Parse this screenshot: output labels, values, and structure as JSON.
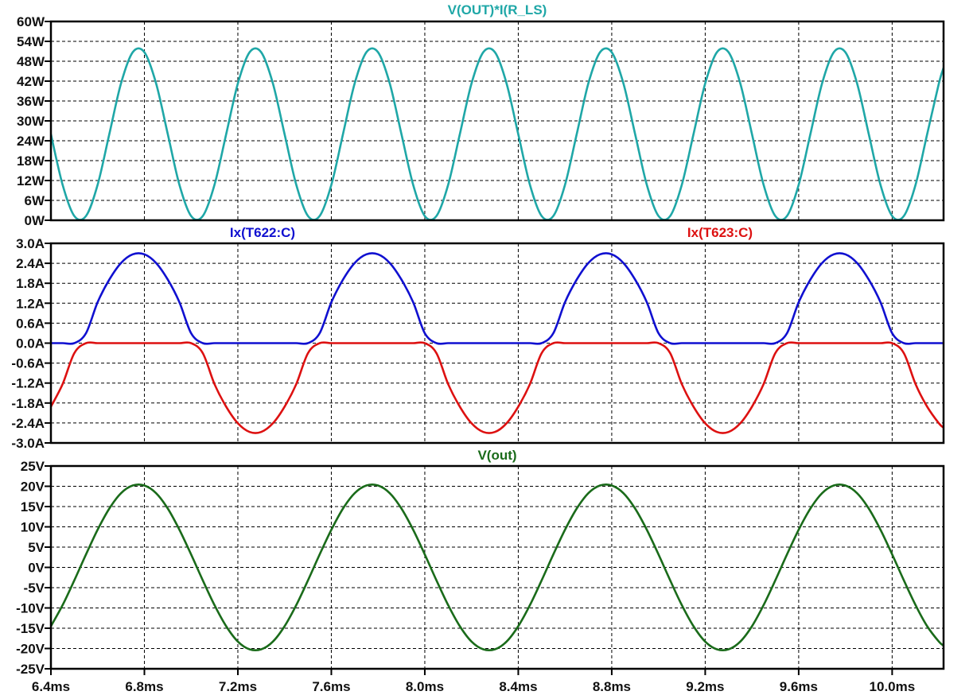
{
  "x_axis": {
    "unit": "ms",
    "range": [
      6.4,
      10.22
    ],
    "ticks": [
      "6.4ms",
      "6.8ms",
      "7.2ms",
      "7.6ms",
      "8.0ms",
      "8.4ms",
      "8.8ms",
      "9.2ms",
      "9.6ms",
      "10.0ms"
    ],
    "tick_values": [
      6.4,
      6.8,
      7.2,
      7.6,
      8.0,
      8.4,
      8.8,
      9.2,
      9.6,
      10.0
    ]
  },
  "x_ms": [
    6.4,
    6.45,
    6.5,
    6.55,
    6.6,
    6.65,
    6.7,
    6.75,
    6.8,
    6.85,
    6.9,
    6.95,
    7.0,
    7.05,
    7.1,
    7.15,
    7.2,
    7.25,
    7.3,
    7.35,
    7.4,
    7.45,
    7.5,
    7.55,
    7.6,
    7.65,
    7.7,
    7.75,
    7.8,
    7.85,
    7.9,
    7.95,
    8.0,
    8.05,
    8.1,
    8.15,
    8.2,
    8.25,
    8.3,
    8.35,
    8.4,
    8.45,
    8.5,
    8.55,
    8.6,
    8.65,
    8.7,
    8.75,
    8.8,
    8.85,
    8.9,
    8.95,
    9.0,
    9.05,
    9.1,
    9.15,
    9.2,
    9.25,
    9.3,
    9.35,
    9.4,
    9.45,
    9.5,
    9.55,
    9.6,
    9.65,
    9.7,
    9.75,
    9.8,
    9.85,
    9.9,
    9.95,
    10.0,
    10.05,
    10.1,
    10.15,
    10.2,
    10.22
  ],
  "chart_data": [
    {
      "type": "line",
      "grid": true,
      "ylim": [
        0,
        60
      ],
      "yticks": [
        "60W",
        "54W",
        "48W",
        "42W",
        "36W",
        "30W",
        "24W",
        "18W",
        "12W",
        "6W",
        "0W"
      ],
      "ytick_values": [
        60,
        54,
        48,
        42,
        36,
        30,
        24,
        18,
        12,
        6,
        0
      ],
      "series": [
        {
          "name": "V(OUT)*I(R_LS)",
          "color": "#1fa7a7",
          "values": [
            26.0,
            10.7,
            1.3,
            1.3,
            10.7,
            26.0,
            41.3,
            50.7,
            50.7,
            41.3,
            26.0,
            10.7,
            1.3,
            1.3,
            10.7,
            26.0,
            41.3,
            50.7,
            50.7,
            41.3,
            26.0,
            10.7,
            1.3,
            1.3,
            10.7,
            26.0,
            41.3,
            50.7,
            50.7,
            41.3,
            26.0,
            10.7,
            1.3,
            1.3,
            10.7,
            26.0,
            41.3,
            50.7,
            50.7,
            41.3,
            26.0,
            10.7,
            1.3,
            1.3,
            10.7,
            26.0,
            41.3,
            50.7,
            50.7,
            41.3,
            26.0,
            10.7,
            1.3,
            1.3,
            10.7,
            26.0,
            41.3,
            50.7,
            50.7,
            41.3,
            26.0,
            10.7,
            1.3,
            1.3,
            10.7,
            26.0,
            41.3,
            50.7,
            50.7,
            41.3,
            26.0,
            10.7,
            1.3,
            1.3,
            10.7,
            26.0,
            41.3,
            46.0
          ]
        }
      ]
    },
    {
      "type": "line",
      "grid": true,
      "ylim": [
        -3,
        3
      ],
      "yticks": [
        "3.0A",
        "2.4A",
        "1.8A",
        "1.2A",
        "0.6A",
        "0.0A",
        "-0.6A",
        "-1.2A",
        "-1.8A",
        "-2.4A",
        "-3.0A"
      ],
      "ytick_values": [
        3,
        2.4,
        1.8,
        1.2,
        0.6,
        0,
        -0.6,
        -1.2,
        -1.8,
        -2.4,
        -3
      ],
      "series": [
        {
          "name": "Ix(T622:C)",
          "color": "#1010d0",
          "values": [
            0,
            0,
            0,
            0.3,
            1.23,
            1.91,
            2.41,
            2.67,
            2.67,
            2.41,
            1.91,
            1.23,
            0.3,
            0,
            0,
            0,
            0,
            0,
            0,
            0,
            0,
            0,
            0,
            0.3,
            1.23,
            1.91,
            2.41,
            2.67,
            2.67,
            2.41,
            1.91,
            1.23,
            0.3,
            0,
            0,
            0,
            0,
            0,
            0,
            0,
            0,
            0,
            0,
            0.3,
            1.23,
            1.91,
            2.41,
            2.67,
            2.67,
            2.41,
            1.91,
            1.23,
            0.3,
            0,
            0,
            0,
            0,
            0,
            0,
            0,
            0,
            0,
            0,
            0.3,
            1.23,
            1.91,
            2.41,
            2.67,
            2.67,
            2.41,
            1.91,
            1.23,
            0.3,
            0,
            0,
            0,
            0,
            0
          ]
        },
        {
          "name": "Ix(T623:C)",
          "color": "#dd1111",
          "values": [
            -1.91,
            -1.23,
            -0.3,
            0,
            0,
            0,
            0,
            0,
            0,
            0,
            0,
            0,
            0,
            -0.3,
            -1.23,
            -1.91,
            -2.41,
            -2.67,
            -2.67,
            -2.41,
            -1.91,
            -1.23,
            -0.3,
            0,
            0,
            0,
            0,
            0,
            0,
            0,
            0,
            0,
            0,
            -0.3,
            -1.23,
            -1.91,
            -2.41,
            -2.67,
            -2.67,
            -2.41,
            -1.91,
            -1.23,
            -0.3,
            0,
            0,
            0,
            0,
            0,
            0,
            0,
            0,
            0,
            0,
            -0.3,
            -1.23,
            -1.91,
            -2.41,
            -2.67,
            -2.67,
            -2.41,
            -1.91,
            -1.23,
            -0.3,
            0,
            0,
            0,
            0,
            0,
            0,
            0,
            0,
            0,
            0,
            -0.3,
            -1.23,
            -1.91,
            -2.41,
            -2.54
          ]
        }
      ]
    },
    {
      "type": "line",
      "grid": true,
      "ylim": [
        -25,
        25
      ],
      "yticks": [
        "25V",
        "20V",
        "15V",
        "10V",
        "5V",
        "0V",
        "-5V",
        "-10V",
        "-15V",
        "-20V",
        "-25V"
      ],
      "ytick_values": [
        25,
        20,
        15,
        10,
        5,
        0,
        -5,
        -10,
        -15,
        -20,
        -25
      ],
      "series": [
        {
          "name": "V(out)",
          "color": "#1a6b1a",
          "values": [
            -14.5,
            -9.3,
            -3.2,
            3.2,
            9.3,
            14.5,
            18.3,
            20.2,
            20.2,
            18.3,
            14.5,
            9.3,
            3.2,
            -3.2,
            -9.3,
            -14.5,
            -18.3,
            -20.2,
            -20.2,
            -18.3,
            -14.5,
            -9.3,
            -3.2,
            3.2,
            9.3,
            14.5,
            18.3,
            20.2,
            20.2,
            18.3,
            14.5,
            9.3,
            3.2,
            -3.2,
            -9.3,
            -14.5,
            -18.3,
            -20.2,
            -20.2,
            -18.3,
            -14.5,
            -9.3,
            -3.2,
            3.2,
            9.3,
            14.5,
            18.3,
            20.2,
            20.2,
            18.3,
            14.5,
            9.3,
            3.2,
            -3.2,
            -9.3,
            -14.5,
            -18.3,
            -20.2,
            -20.2,
            -18.3,
            -14.5,
            -9.3,
            -3.2,
            3.2,
            9.3,
            14.5,
            18.3,
            20.2,
            20.2,
            18.3,
            14.5,
            9.3,
            3.2,
            -3.2,
            -9.3,
            -14.5,
            -18.3,
            -19.3
          ]
        }
      ]
    }
  ]
}
